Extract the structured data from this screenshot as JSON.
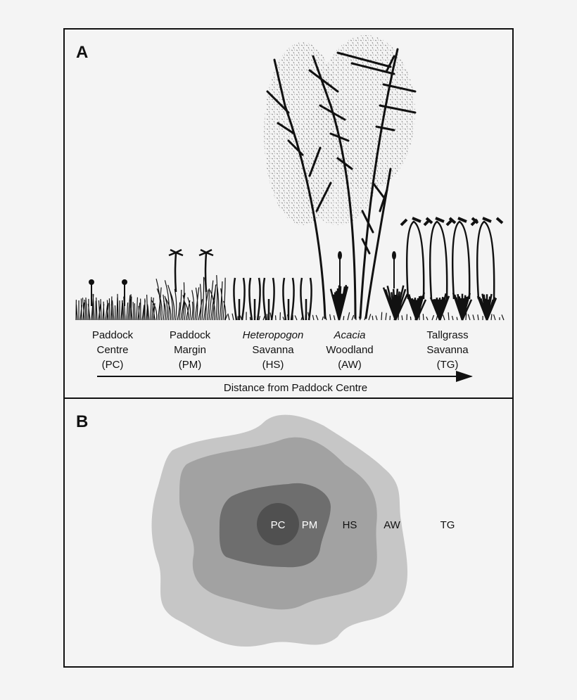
{
  "panels": [
    {
      "label": "A",
      "zones": [
        {
          "lines": [
            "Paddock",
            "Centre",
            "(PC)"
          ]
        },
        {
          "lines": [
            "Paddock",
            "Margin",
            "(PM)"
          ]
        },
        {
          "lines": [
            "Heteropogon",
            "Savanna",
            "(HS)"
          ]
        },
        {
          "lines": [
            "Acacia",
            "Woodland",
            "(AW)"
          ]
        },
        {
          "lines": [
            "Tallgrass",
            "Savanna",
            "(TG)"
          ]
        }
      ],
      "arrow_label": "Distance from Paddock Centre"
    },
    {
      "label": "B",
      "zones": [
        "PC",
        "PM",
        "HS",
        "AW",
        "TG"
      ]
    }
  ]
}
